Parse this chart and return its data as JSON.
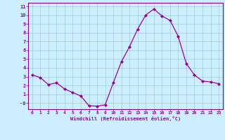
{
  "x": [
    0,
    1,
    2,
    3,
    4,
    5,
    6,
    7,
    8,
    9,
    10,
    11,
    12,
    13,
    14,
    15,
    16,
    17,
    18,
    19,
    20,
    21,
    22,
    23
  ],
  "y": [
    3.2,
    2.9,
    2.1,
    2.3,
    1.6,
    1.2,
    0.8,
    -0.3,
    -0.35,
    -0.2,
    2.3,
    4.7,
    6.4,
    8.4,
    10.0,
    10.7,
    9.9,
    9.4,
    7.6,
    4.5,
    3.2,
    2.5,
    2.4,
    2.2
  ],
  "line_color": "#990099",
  "marker": "D",
  "marker_size": 2.0,
  "bg_color": "#cceeff",
  "grid_color": "#99ccdd",
  "xlabel": "Windchill (Refroidissement éolien,°C)",
  "xlabel_color": "#990099",
  "tick_color": "#990099",
  "xlim": [
    -0.5,
    23.5
  ],
  "ylim": [
    -0.7,
    11.4
  ],
  "yticks": [
    0,
    1,
    2,
    3,
    4,
    5,
    6,
    7,
    8,
    9,
    10,
    11
  ],
  "xticks": [
    0,
    1,
    2,
    3,
    4,
    5,
    6,
    7,
    8,
    9,
    10,
    11,
    12,
    13,
    14,
    15,
    16,
    17,
    18,
    19,
    20,
    21,
    22,
    23
  ],
  "ytick_labels": [
    "-0",
    "1",
    "2",
    "3",
    "4",
    "5",
    "6",
    "7",
    "8",
    "9",
    "10",
    "11"
  ],
  "spine_color": "#880088"
}
